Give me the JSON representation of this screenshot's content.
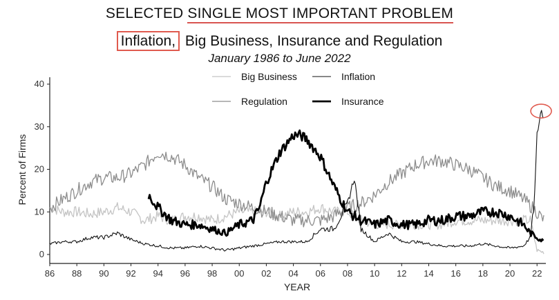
{
  "header": {
    "title_prefix": "SELECTED ",
    "title_main": "SINGLE MOST IMPORTANT PROBLEM",
    "subtitle_inflation": "Inflation,",
    "subtitle_rest": " Big Business, Insurance and Regulation",
    "daterange": "January 1986 to June 2022"
  },
  "chart_data": {
    "type": "line",
    "xlabel": "YEAR",
    "ylabel": "Percent of Firms",
    "xlim": [
      1986,
      2022.5
    ],
    "ylim": [
      0,
      40
    ],
    "x_ticks": [
      "86",
      "88",
      "90",
      "92",
      "94",
      "96",
      "98",
      "00",
      "02",
      "04",
      "06",
      "08",
      "10",
      "12",
      "14",
      "16",
      "18",
      "20",
      "22"
    ],
    "y_ticks": [
      "0",
      "10",
      "20",
      "30",
      "40"
    ],
    "legend": {
      "placement": "top-center",
      "entries": [
        "Big Business",
        "Inflation",
        "Regulation",
        "Insurance"
      ]
    },
    "colors": {
      "big_business": "#c4c4c4",
      "inflation": "#111111",
      "regulation": "#8c8c8c",
      "insurance": "#000000"
    },
    "series": [
      {
        "name": "Big Business",
        "x": [
          1986,
          1987,
          1988,
          1989,
          1990,
          1991,
          1992,
          1993,
          1994,
          1995,
          1996,
          1997,
          1998,
          1999,
          2000,
          2001,
          2002,
          2003,
          2004,
          2005,
          2006,
          2007,
          2008,
          2009,
          2010,
          2011,
          2012,
          2013,
          2014,
          2015,
          2016,
          2017,
          2018,
          2019,
          2020,
          2021,
          2021.5,
          2022,
          2022.5
        ],
        "y": [
          11,
          10,
          10,
          9.5,
          10,
          11,
          10,
          8,
          9,
          8,
          9,
          9,
          8,
          9,
          10,
          10,
          10,
          9,
          10,
          10,
          11,
          10,
          10,
          8,
          7,
          7,
          7,
          7,
          7,
          7,
          8,
          8,
          8,
          8,
          8,
          8,
          8,
          1,
          0.5
        ]
      },
      {
        "name": "Inflation",
        "x": [
          1986,
          1987,
          1988,
          1989,
          1990,
          1991,
          1992,
          1993,
          1994,
          1995,
          1996,
          1997,
          1998,
          1999,
          2000,
          2001,
          2002,
          2003,
          2004,
          2005,
          2006,
          2007,
          2008,
          2008.5,
          2009,
          2010,
          2011,
          2012,
          2013,
          2014,
          2015,
          2016,
          2017,
          2018,
          2019,
          2020,
          2021,
          2021.5,
          2021.8,
          2022,
          2022.3,
          2022.5
        ],
        "y": [
          2.5,
          3,
          3,
          4,
          4,
          5,
          3.5,
          2.5,
          2,
          1.5,
          1.5,
          2,
          1.5,
          1,
          1.5,
          2,
          2.5,
          3,
          3,
          3,
          6,
          6,
          12,
          18,
          6,
          3,
          5,
          3,
          3,
          2.5,
          2,
          2,
          2,
          2.5,
          2,
          1.5,
          2,
          4,
          12,
          28,
          34,
          32
        ]
      },
      {
        "name": "Regulation",
        "x": [
          1986,
          1987,
          1988,
          1989,
          1990,
          1991,
          1992,
          1993,
          1994,
          1995,
          1996,
          1997,
          1998,
          1999,
          2000,
          2001,
          2002,
          2003,
          2004,
          2005,
          2006,
          2007,
          2008,
          2009,
          2010,
          2011,
          2012,
          2013,
          2014,
          2015,
          2016,
          2017,
          2018,
          2019,
          2020,
          2021,
          2022,
          2022.5
        ],
        "y": [
          11,
          13,
          15,
          17,
          18,
          18,
          19,
          21,
          24,
          23,
          21,
          18,
          16,
          13,
          12,
          11,
          10,
          9,
          8,
          8,
          8,
          9,
          11,
          12,
          14,
          17,
          19,
          21,
          22,
          22,
          21,
          20,
          18,
          16,
          15,
          13,
          10,
          8
        ]
      },
      {
        "name": "Insurance",
        "x": [
          1993.3,
          1994,
          1995,
          1996,
          1997,
          1998,
          1999,
          2000,
          2001,
          2001.5,
          2002,
          2003,
          2004,
          2004.5,
          2005,
          2006,
          2007,
          2008,
          2009,
          2010,
          2011,
          2012,
          2013,
          2014,
          2015,
          2016,
          2017,
          2018,
          2019,
          2020,
          2021,
          2021.5,
          2022,
          2022.5
        ],
        "y": [
          14,
          11,
          8,
          7,
          7,
          6,
          5,
          7,
          8,
          11,
          17,
          24,
          28,
          28,
          27,
          23,
          16,
          10,
          8,
          7,
          8,
          7,
          7,
          8,
          8,
          9,
          9,
          10,
          10,
          9,
          7,
          5,
          4,
          3
        ]
      }
    ]
  }
}
